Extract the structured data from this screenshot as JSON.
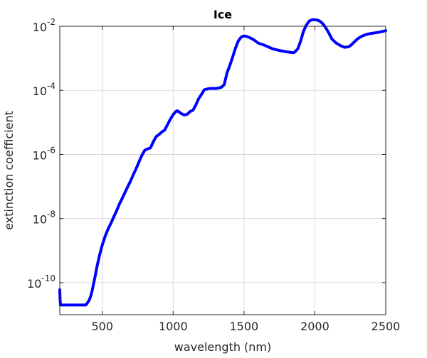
{
  "chart_data": {
    "type": "line",
    "title": "Ice",
    "xlabel": "wavelength (nm)",
    "ylabel": "extinction coefficient",
    "xlim": [
      200,
      2500
    ],
    "ylim": [
      1e-11,
      0.01
    ],
    "yscale": "log",
    "grid": true,
    "x_ticks": [
      {
        "value": 500,
        "label": "500"
      },
      {
        "value": 1000,
        "label": "1000"
      },
      {
        "value": 1500,
        "label": "1500"
      },
      {
        "value": 2000,
        "label": "2000"
      },
      {
        "value": 2500,
        "label": "2500"
      }
    ],
    "y_ticks": [
      {
        "value": 1e-10,
        "base": "10",
        "exp": "-10"
      },
      {
        "value": 1e-08,
        "base": "10",
        "exp": "-8"
      },
      {
        "value": 1e-06,
        "base": "10",
        "exp": "-6"
      },
      {
        "value": 0.0001,
        "base": "10",
        "exp": "-4"
      },
      {
        "value": 0.01,
        "base": "10",
        "exp": "-2"
      }
    ],
    "series": [
      {
        "color": "#0000ff",
        "x": [
          200,
          202,
          205,
          210,
          250,
          300,
          350,
          385,
          400,
          410,
          420,
          430,
          440,
          450,
          460,
          480,
          500,
          520,
          540,
          560,
          580,
          600,
          620,
          640,
          660,
          680,
          700,
          720,
          740,
          760,
          780,
          800,
          820,
          840,
          860,
          880,
          900,
          920,
          940,
          960,
          980,
          1000,
          1020,
          1030,
          1040,
          1060,
          1080,
          1100,
          1120,
          1140,
          1160,
          1180,
          1200,
          1220,
          1240,
          1260,
          1280,
          1300,
          1320,
          1340,
          1360,
          1380,
          1400,
          1420,
          1440,
          1460,
          1480,
          1500,
          1520,
          1540,
          1560,
          1580,
          1600,
          1650,
          1700,
          1750,
          1800,
          1820,
          1840,
          1850,
          1860,
          1880,
          1900,
          1920,
          1940,
          1960,
          1980,
          2000,
          2020,
          2040,
          2060,
          2080,
          2100,
          2120,
          2150,
          2180,
          2210,
          2240,
          2260,
          2280,
          2300,
          2320,
          2340,
          2360,
          2380,
          2400,
          2450,
          2500
        ],
        "y": [
          6e-11,
          3e-11,
          2e-11,
          2e-11,
          2e-11,
          2e-11,
          2e-11,
          2e-11,
          2.5e-11,
          3e-11,
          4e-11,
          6e-11,
          1e-10,
          1.6e-10,
          2.8e-10,
          7e-10,
          1.5e-09,
          2.8e-09,
          4.6e-09,
          7e-09,
          1.1e-08,
          1.7e-08,
          2.8e-08,
          4.2e-08,
          6.5e-08,
          1e-07,
          1.5e-07,
          2.4e-07,
          3.7e-07,
          6e-07,
          9.5e-07,
          1.35e-06,
          1.5e-06,
          1.6e-06,
          2.5e-06,
          3.6e-06,
          4.2e-06,
          5e-06,
          5.8e-06,
          8.5e-06,
          1.25e-05,
          1.75e-05,
          2.2e-05,
          2.3e-05,
          2.15e-05,
          1.85e-05,
          1.7e-05,
          1.8e-05,
          2.2e-05,
          2.4e-05,
          3.5e-05,
          5.5e-05,
          7.5e-05,
          0.000105,
          0.00011,
          0.000115,
          0.000115,
          0.000115,
          0.000118,
          0.000125,
          0.00015,
          0.00035,
          0.0006,
          0.0011,
          0.0021,
          0.0035,
          0.0046,
          0.005,
          0.0048,
          0.0044,
          0.004,
          0.0035,
          0.003,
          0.0025,
          0.002,
          0.00175,
          0.0016,
          0.00155,
          0.0015,
          0.0015,
          0.0016,
          0.002,
          0.0035,
          0.007,
          0.011,
          0.0145,
          0.016,
          0.016,
          0.0155,
          0.014,
          0.0115,
          0.0085,
          0.006,
          0.004,
          0.003,
          0.0025,
          0.0022,
          0.0023,
          0.0027,
          0.0033,
          0.004,
          0.0046,
          0.0051,
          0.0055,
          0.0058,
          0.006,
          0.0065,
          0.0073
        ]
      }
    ]
  }
}
